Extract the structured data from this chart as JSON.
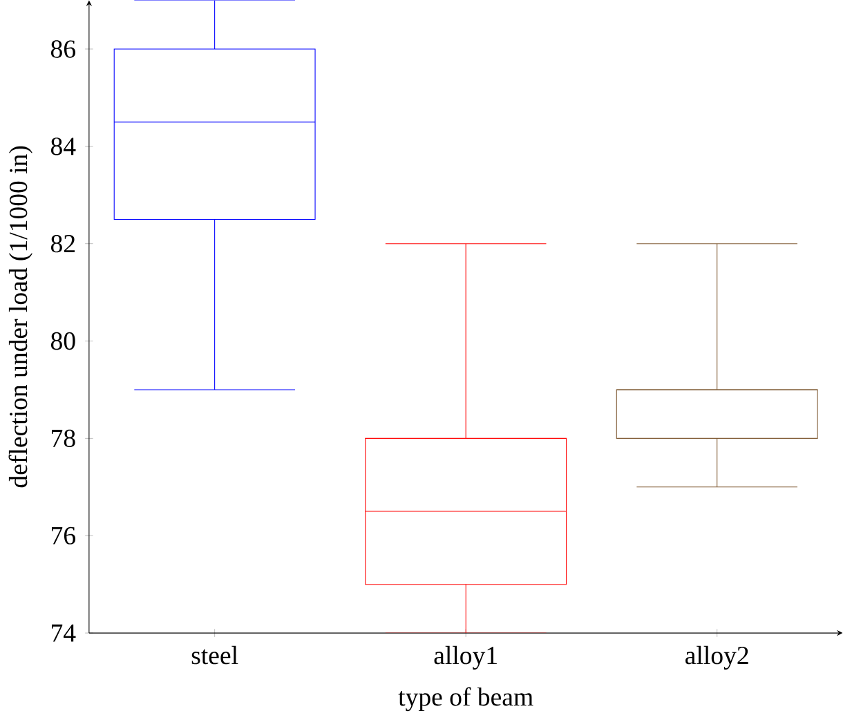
{
  "chart_data": {
    "type": "box",
    "xlabel": "type of beam",
    "ylabel": "deflection under load (1/1000 in)",
    "categories": [
      "steel",
      "alloy1",
      "alloy2"
    ],
    "colors": [
      "#0000ff",
      "#ff0000",
      "#7f5a33"
    ],
    "boxes": [
      {
        "low": 79,
        "q1": 82.5,
        "median": 84.5,
        "q3": 86,
        "high": 87
      },
      {
        "low": 74,
        "q1": 75,
        "median": 76.5,
        "q3": 78,
        "high": 82
      },
      {
        "low": 77,
        "q1": 78,
        "median": 79,
        "q3": 79,
        "high": 82
      }
    ],
    "ylim": [
      74,
      87
    ],
    "yticks": [
      74,
      76,
      78,
      80,
      82,
      84,
      86
    ]
  }
}
